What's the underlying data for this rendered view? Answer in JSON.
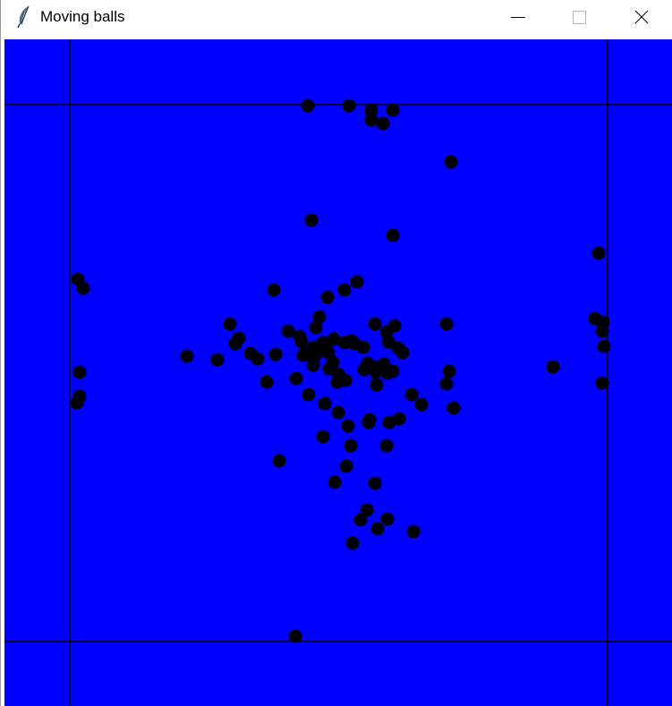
{
  "window": {
    "title": "Moving balls",
    "controls": {
      "minimize_icon": "minimize-icon",
      "maximize_icon": "maximize-icon",
      "close_icon": "close-icon"
    },
    "app_icon": "feather-icon"
  },
  "canvas": {
    "background_color": "#0000ff",
    "ball_color": "#000000",
    "line_color": "#000000",
    "ball_count": 100
  }
}
